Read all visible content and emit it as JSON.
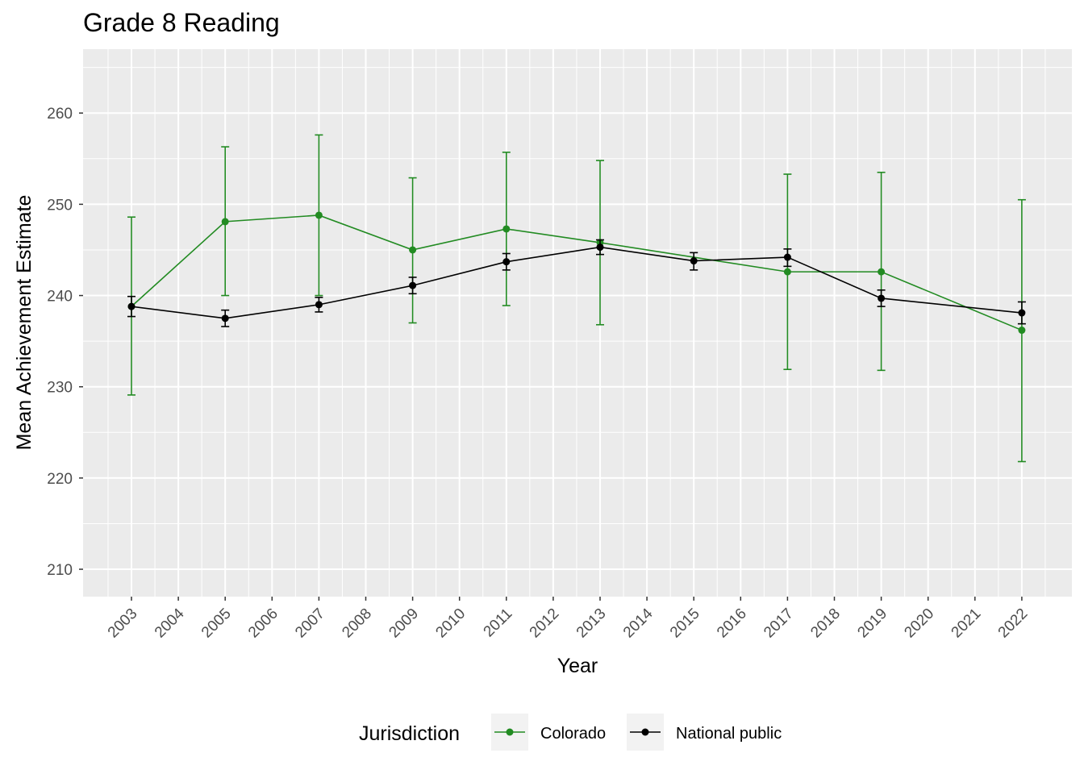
{
  "chart_data": {
    "type": "line",
    "title": "Grade 8 Reading",
    "xlabel": "Year",
    "ylabel": "Mean Achievement Estimate",
    "x_ticks": [
      "2003",
      "2004",
      "2005",
      "2006",
      "2007",
      "2008",
      "2009",
      "2010",
      "2011",
      "2012",
      "2013",
      "2014",
      "2015",
      "2016",
      "2017",
      "2018",
      "2019",
      "2020",
      "2021",
      "2022"
    ],
    "y_ticks": [
      210,
      220,
      230,
      240,
      250,
      260
    ],
    "ylim": [
      207,
      267
    ],
    "grid": true,
    "legend": {
      "title": "Jurisdiction",
      "position": "bottom"
    },
    "series": [
      {
        "name": "Colorado",
        "color": "#228B22",
        "points": [
          {
            "x": "2003",
            "y": 238.8,
            "lower": 229.1,
            "upper": 248.6
          },
          {
            "x": "2005",
            "y": 248.1,
            "lower": 240.0,
            "upper": 256.3
          },
          {
            "x": "2007",
            "y": 248.8,
            "lower": 240.0,
            "upper": 257.6
          },
          {
            "x": "2009",
            "y": 245.0,
            "lower": 237.0,
            "upper": 252.9
          },
          {
            "x": "2011",
            "y": 247.3,
            "lower": 238.9,
            "upper": 255.7
          },
          {
            "x": "2013",
            "y": 245.8,
            "lower": 236.8,
            "upper": 254.8
          },
          {
            "x": "2017",
            "y": 242.6,
            "lower": 231.9,
            "upper": 253.3
          },
          {
            "x": "2019",
            "y": 242.6,
            "lower": 231.8,
            "upper": 253.5
          },
          {
            "x": "2022",
            "y": 236.2,
            "lower": 221.8,
            "upper": 250.5
          }
        ]
      },
      {
        "name": "National public",
        "color": "#000000",
        "points": [
          {
            "x": "2003",
            "y": 238.8,
            "lower": 237.7,
            "upper": 239.9
          },
          {
            "x": "2005",
            "y": 237.5,
            "lower": 236.6,
            "upper": 238.4
          },
          {
            "x": "2007",
            "y": 239.0,
            "lower": 238.2,
            "upper": 239.8
          },
          {
            "x": "2009",
            "y": 241.1,
            "lower": 240.2,
            "upper": 242.0
          },
          {
            "x": "2011",
            "y": 243.7,
            "lower": 242.8,
            "upper": 244.6
          },
          {
            "x": "2013",
            "y": 245.3,
            "lower": 244.5,
            "upper": 246.1
          },
          {
            "x": "2015",
            "y": 243.8,
            "lower": 242.8,
            "upper": 244.7
          },
          {
            "x": "2017",
            "y": 244.2,
            "lower": 243.2,
            "upper": 245.1
          },
          {
            "x": "2019",
            "y": 239.7,
            "lower": 238.8,
            "upper": 240.6
          },
          {
            "x": "2022",
            "y": 238.1,
            "lower": 236.9,
            "upper": 239.3
          }
        ]
      }
    ]
  }
}
